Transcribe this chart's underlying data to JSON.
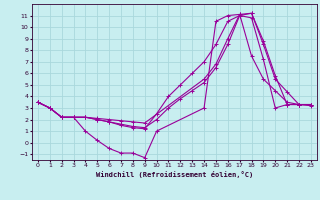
{
  "xlabel": "Windchill (Refroidissement éolien,°C)",
  "bg_color": "#c8eef0",
  "grid_color": "#aad8dc",
  "line_color": "#990099",
  "xlim": [
    -0.5,
    23.5
  ],
  "ylim": [
    -1.5,
    12.0
  ],
  "xticks": [
    0,
    1,
    2,
    3,
    4,
    5,
    6,
    7,
    8,
    9,
    10,
    11,
    12,
    13,
    14,
    15,
    16,
    17,
    18,
    19,
    20,
    21,
    22,
    23
  ],
  "yticks": [
    -1,
    0,
    1,
    2,
    3,
    4,
    5,
    6,
    7,
    8,
    9,
    10,
    11
  ],
  "lines": [
    {
      "x": [
        0,
        1,
        2,
        3,
        4,
        5,
        6,
        7,
        8,
        9,
        14,
        15,
        16,
        17,
        18,
        19,
        20,
        21,
        22,
        23
      ],
      "y": [
        3.5,
        3.0,
        2.2,
        2.2,
        2.2,
        2.1,
        2.0,
        1.9,
        1.8,
        1.7,
        5.5,
        6.8,
        9.0,
        11.1,
        11.2,
        8.8,
        5.8,
        3.3,
        3.3,
        3.3
      ]
    },
    {
      "x": [
        0,
        1,
        2,
        3,
        4,
        5,
        6,
        7,
        8,
        9,
        10,
        11,
        12,
        13,
        14,
        15,
        16,
        17,
        18,
        19,
        20,
        21,
        22,
        23
      ],
      "y": [
        3.5,
        3.0,
        2.2,
        2.2,
        2.2,
        2.0,
        1.8,
        1.6,
        1.4,
        1.3,
        2.0,
        3.0,
        3.8,
        4.5,
        5.2,
        6.5,
        8.5,
        11.0,
        11.2,
        8.5,
        5.5,
        4.4,
        3.3,
        3.3
      ]
    },
    {
      "x": [
        0,
        1,
        2,
        3,
        4,
        5,
        6,
        7,
        8,
        9,
        10,
        11,
        12,
        13,
        14,
        15,
        16,
        17,
        18,
        19,
        20,
        21,
        22,
        23
      ],
      "y": [
        3.5,
        3.0,
        2.2,
        2.2,
        2.2,
        2.0,
        1.8,
        1.5,
        1.3,
        1.2,
        2.5,
        4.0,
        5.0,
        6.0,
        7.0,
        8.5,
        10.5,
        11.0,
        10.8,
        7.2,
        3.0,
        3.3,
        3.3,
        3.3
      ]
    },
    {
      "x": [
        0,
        1,
        2,
        3,
        4,
        5,
        6,
        7,
        8,
        9,
        10,
        14,
        15,
        16,
        17,
        18,
        19,
        20,
        21,
        22,
        23
      ],
      "y": [
        3.5,
        3.0,
        2.2,
        2.2,
        1.0,
        0.2,
        -0.5,
        -0.9,
        -0.9,
        -1.3,
        1.0,
        3.0,
        10.5,
        11.0,
        11.1,
        7.5,
        5.5,
        4.5,
        3.5,
        3.3,
        3.2
      ]
    }
  ]
}
